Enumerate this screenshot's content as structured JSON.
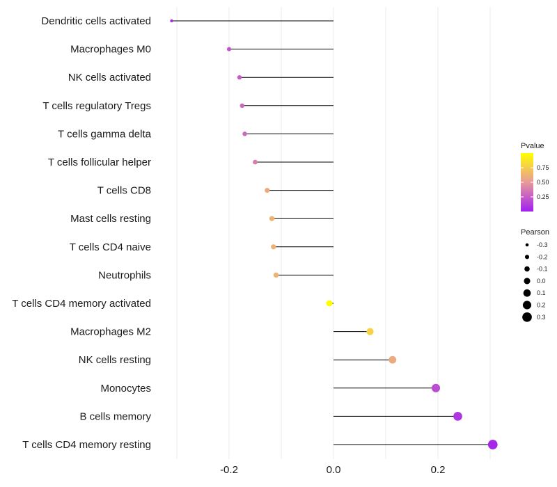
{
  "chart_data": {
    "type": "lollipop",
    "title": "",
    "xlabel": "",
    "ylabel": "",
    "xlim": [
      -0.34,
      0.35
    ],
    "x_ticks": [
      -0.2,
      0.0,
      0.2
    ],
    "x_tick_labels": [
      "-0.2",
      "0.0",
      "0.2"
    ],
    "grid": true,
    "categories": [
      "Dendritic cells activated",
      "Macrophages M0",
      "NK cells activated",
      "T cells regulatory  Tregs",
      "T cells gamma delta",
      "T cells follicular helper",
      "T cells CD8",
      "Mast cells resting",
      "T cells CD4 naive",
      "Neutrophils",
      "T cells CD4 memory activated",
      "Macrophages M2",
      "NK cells resting",
      "Monocytes",
      "B cells memory",
      "T cells CD4 memory resting"
    ],
    "pearson": [
      -0.31,
      -0.2,
      -0.18,
      -0.175,
      -0.17,
      -0.15,
      -0.127,
      -0.118,
      -0.115,
      -0.11,
      -0.008,
      0.07,
      0.113,
      0.196,
      0.238,
      0.305
    ],
    "pvalue": [
      0.05,
      0.22,
      0.25,
      0.3,
      0.3,
      0.38,
      0.58,
      0.62,
      0.62,
      0.63,
      1.0,
      0.78,
      0.58,
      0.18,
      0.1,
      0.03
    ],
    "legend": {
      "placement": "right",
      "color_title": "Pvalue",
      "color_ticks": [
        0.25,
        0.5,
        0.75
      ],
      "color_tick_labels": [
        "0.25",
        "0.50",
        "0.75"
      ],
      "color_range": [
        0.0,
        1.0
      ],
      "color_low": "#a020f0",
      "color_mid": "#e89a9a",
      "color_high": "#ffff00",
      "size_title": "Pearson",
      "size_values": [
        -0.3,
        -0.2,
        -0.1,
        0.0,
        0.1,
        0.2,
        0.3
      ],
      "size_labels": [
        "-0.3",
        "-0.2",
        "-0.1",
        "0.0",
        "0.1",
        "0.2",
        "0.3"
      ]
    }
  }
}
